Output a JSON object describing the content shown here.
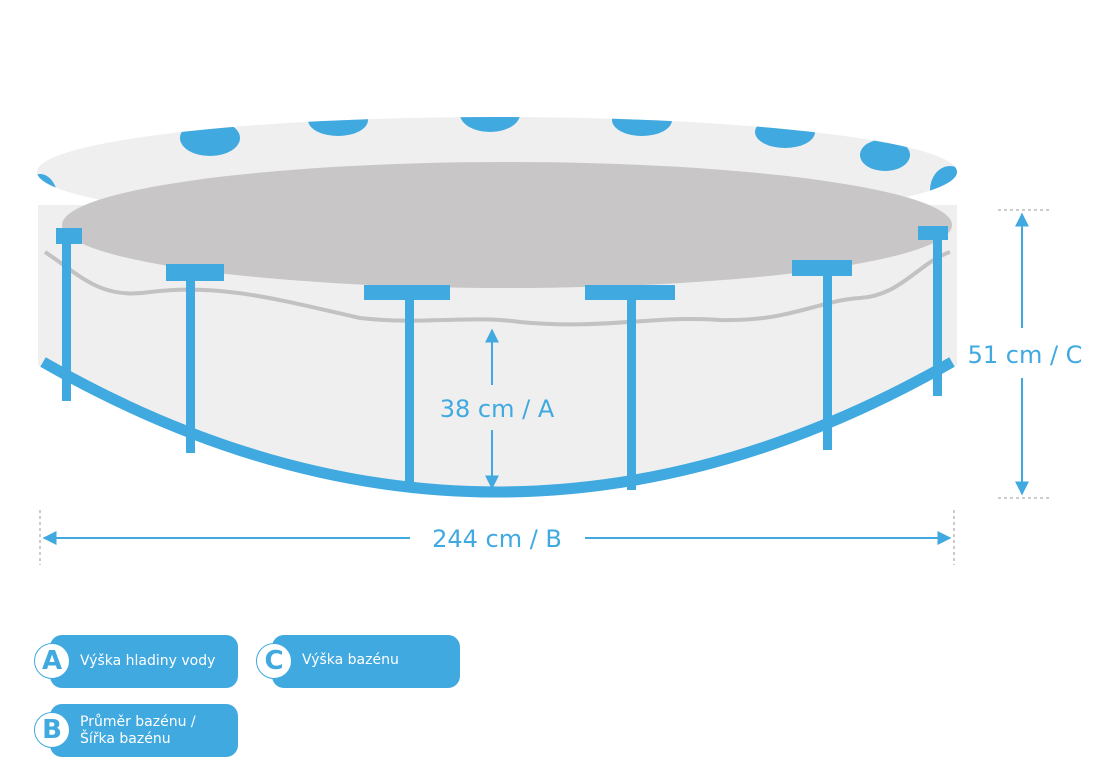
{
  "colors": {
    "accent": "#3fa9e0",
    "wall": "#efefef",
    "floor": "#c8c6c7",
    "waterline": "#c3c1c1"
  },
  "dimensions": {
    "water_height": "38 cm / A",
    "diameter": "244 cm / B",
    "pool_height": "51 cm / C"
  },
  "legend": [
    {
      "letter": "A",
      "label": "Výška hladiny vody"
    },
    {
      "letter": "B",
      "label_line1": "Průměr bazénu /",
      "label_line2": "Šířka bazénu"
    },
    {
      "letter": "C",
      "label": "Výška bazénu"
    }
  ]
}
